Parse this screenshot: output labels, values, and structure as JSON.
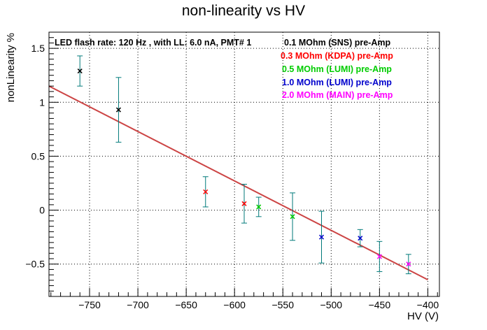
{
  "chart_data": {
    "type": "scatter",
    "title": "non-linearity vs HV",
    "xlabel": "HV (V)",
    "ylabel": "nonLinearity %",
    "xlim": [
      -792,
      -388
    ],
    "ylim": [
      -0.8,
      1.65
    ],
    "grid": true,
    "annotation": "LED flash rate: 120 Hz , with LL: 6.0 nA, PMT# 1",
    "x_ticks": [
      -750,
      -700,
      -650,
      -600,
      -550,
      -500,
      -450,
      -400
    ],
    "x_tick_labels": [
      "−750",
      "−700",
      "−650",
      "−600",
      "−550",
      "−500",
      "−450",
      "−400"
    ],
    "y_ticks": [
      -0.5,
      0,
      0.5,
      1,
      1.5
    ],
    "y_tick_labels": [
      "−0.5",
      "0",
      "0.5",
      "1",
      "1.5"
    ],
    "legend": [
      {
        "label": "0.1 MOhm (SNS) pre-Amp",
        "color": "#000000"
      },
      {
        "label": "0.3 MOhm (KDPA) pre-Amp",
        "color": "#ff0000"
      },
      {
        "label": "0.5 MOhm (LUMI) pre-Amp",
        "color": "#00cc00"
      },
      {
        "label": "1.0 MOhm (LUMI) pre-Amp",
        "color": "#0000cc"
      },
      {
        "label": "2.0 MOhm (MAIN) pre-Amp",
        "color": "#ff00ff"
      }
    ],
    "legend_position": "top-right",
    "error_bar_color": "#007a7a",
    "fit": {
      "color": "#cc4444",
      "x": [
        -792,
        -400
      ],
      "y": [
        1.15,
        -0.645
      ]
    },
    "series": [
      {
        "name": "0.1 MOhm (SNS) pre-Amp",
        "color": "#000000",
        "points": [
          {
            "x": -760,
            "y": 1.29,
            "yerr": 0.14
          },
          {
            "x": -720,
            "y": 0.93,
            "yerr": 0.3
          }
        ]
      },
      {
        "name": "0.3 MOhm (KDPA) pre-Amp",
        "color": "#ff0000",
        "points": [
          {
            "x": -630,
            "y": 0.17,
            "yerr": 0.14
          },
          {
            "x": -590,
            "y": 0.06,
            "yerr": 0.18
          }
        ]
      },
      {
        "name": "0.5 MOhm (LUMI) pre-Amp",
        "color": "#00cc00",
        "points": [
          {
            "x": -575,
            "y": 0.03,
            "yerr": 0.09
          },
          {
            "x": -540,
            "y": -0.06,
            "yerr": 0.22
          }
        ]
      },
      {
        "name": "1.0 MOhm (LUMI) pre-Amp",
        "color": "#0000cc",
        "points": [
          {
            "x": -510,
            "y": -0.25,
            "yerr": 0.24
          },
          {
            "x": -470,
            "y": -0.26,
            "yerr": 0.08
          }
        ]
      },
      {
        "name": "2.0 MOhm (MAIN) pre-Amp",
        "color": "#ff00ff",
        "points": [
          {
            "x": -450,
            "y": -0.43,
            "yerr": 0.14
          },
          {
            "x": -420,
            "y": -0.5,
            "yerr": 0.09
          }
        ]
      }
    ]
  }
}
